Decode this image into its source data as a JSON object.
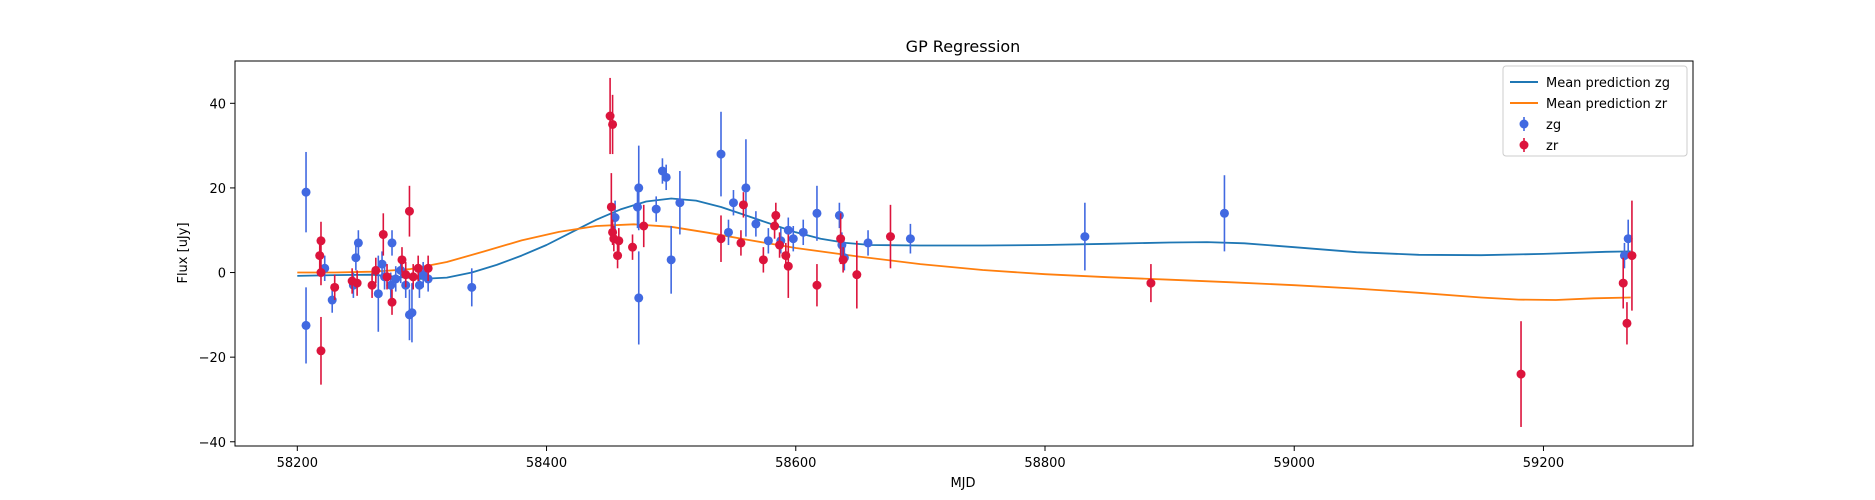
{
  "chart_data": {
    "type": "scatter",
    "title": "GP Regression",
    "xlabel": "MJD",
    "ylabel": "Flux [uJy]",
    "xlim": [
      58150,
      59320
    ],
    "ylim": [
      -41,
      50
    ],
    "xticks": [
      58200,
      58400,
      58600,
      58800,
      59000,
      59200
    ],
    "yticks": [
      -40,
      -20,
      0,
      20,
      40
    ],
    "grid": false,
    "legend_position": "top-right",
    "colors": {
      "zg_line": "#1f77b4",
      "zr_line": "#ff7f0e",
      "zg_points": "#4169e1",
      "zr_points": "#dc143c"
    },
    "legend": [
      {
        "label": "Mean prediction zg",
        "kind": "line",
        "color": "#1f77b4"
      },
      {
        "label": "Mean prediction zr",
        "kind": "line",
        "color": "#ff7f0e"
      },
      {
        "label": "zg",
        "kind": "point",
        "color": "#4169e1"
      },
      {
        "label": "zr",
        "kind": "point",
        "color": "#dc143c"
      }
    ],
    "series": [
      {
        "name": "Mean prediction zg",
        "kind": "line",
        "color": "#1f77b4",
        "points": [
          [
            58200,
            -0.8
          ],
          [
            58230,
            -0.6
          ],
          [
            58260,
            -0.5
          ],
          [
            58280,
            -1.0
          ],
          [
            58300,
            -1.5
          ],
          [
            58320,
            -1.2
          ],
          [
            58340,
            0.0
          ],
          [
            58360,
            1.8
          ],
          [
            58380,
            4.0
          ],
          [
            58400,
            6.5
          ],
          [
            58420,
            9.5
          ],
          [
            58440,
            12.5
          ],
          [
            58460,
            15.0
          ],
          [
            58480,
            16.8
          ],
          [
            58500,
            17.5
          ],
          [
            58520,
            17.0
          ],
          [
            58540,
            15.5
          ],
          [
            58560,
            13.5
          ],
          [
            58580,
            11.5
          ],
          [
            58600,
            9.5
          ],
          [
            58620,
            8.0
          ],
          [
            58640,
            7.0
          ],
          [
            58660,
            6.5
          ],
          [
            58700,
            6.4
          ],
          [
            58750,
            6.4
          ],
          [
            58800,
            6.5
          ],
          [
            58850,
            6.8
          ],
          [
            58900,
            7.1
          ],
          [
            58930,
            7.2
          ],
          [
            58960,
            6.9
          ],
          [
            59000,
            6.0
          ],
          [
            59050,
            4.8
          ],
          [
            59100,
            4.2
          ],
          [
            59150,
            4.1
          ],
          [
            59200,
            4.4
          ],
          [
            59250,
            4.9
          ],
          [
            59270,
            5.0
          ]
        ]
      },
      {
        "name": "Mean prediction zr",
        "kind": "line",
        "color": "#ff7f0e",
        "points": [
          [
            58200,
            0.0
          ],
          [
            58230,
            0.0
          ],
          [
            58260,
            0.2
          ],
          [
            58290,
            0.8
          ],
          [
            58320,
            2.5
          ],
          [
            58350,
            5.0
          ],
          [
            58380,
            7.6
          ],
          [
            58410,
            9.6
          ],
          [
            58440,
            11.0
          ],
          [
            58470,
            11.4
          ],
          [
            58500,
            10.8
          ],
          [
            58530,
            9.4
          ],
          [
            58560,
            7.8
          ],
          [
            58600,
            5.8
          ],
          [
            58650,
            3.8
          ],
          [
            58700,
            2.0
          ],
          [
            58750,
            0.6
          ],
          [
            58800,
            -0.4
          ],
          [
            58850,
            -1.1
          ],
          [
            58900,
            -1.7
          ],
          [
            58950,
            -2.3
          ],
          [
            59000,
            -3.0
          ],
          [
            59050,
            -3.8
          ],
          [
            59100,
            -4.8
          ],
          [
            59150,
            -5.9
          ],
          [
            59180,
            -6.4
          ],
          [
            59210,
            -6.5
          ],
          [
            59240,
            -6.1
          ],
          [
            59270,
            -5.9
          ]
        ]
      },
      {
        "name": "zg",
        "kind": "errorbar",
        "color": "#4169e1",
        "points": [
          [
            58207,
            19,
            9.5
          ],
          [
            58207,
            -12.5,
            9
          ],
          [
            58222,
            1,
            3
          ],
          [
            58228,
            -6.5,
            3
          ],
          [
            58245,
            -3,
            3
          ],
          [
            58247,
            3.5,
            3
          ],
          [
            58249,
            7,
            3
          ],
          [
            58265,
            -5,
            9
          ],
          [
            58268,
            2,
            3
          ],
          [
            58270,
            -1,
            3
          ],
          [
            58275,
            -3,
            3
          ],
          [
            58276,
            7,
            3
          ],
          [
            58279,
            -1.5,
            3
          ],
          [
            58283,
            0.5,
            3
          ],
          [
            58287,
            -3,
            3
          ],
          [
            58290,
            -10,
            6
          ],
          [
            58292,
            -9.5,
            7
          ],
          [
            58298,
            -3,
            3
          ],
          [
            58301,
            -0.5,
            3
          ],
          [
            58305,
            -1.5,
            3
          ],
          [
            58340,
            -3.5,
            4.5
          ],
          [
            58455,
            13,
            4
          ],
          [
            58473,
            15.5,
            5
          ],
          [
            58474,
            20,
            10
          ],
          [
            58474,
            -6,
            11
          ],
          [
            58488,
            15,
            3
          ],
          [
            58493,
            24,
            3
          ],
          [
            58496,
            22.5,
            3
          ],
          [
            58500,
            3,
            8
          ],
          [
            58507,
            16.5,
            7.5
          ],
          [
            58540,
            28,
            10
          ],
          [
            58546,
            9.5,
            3
          ],
          [
            58550,
            16.5,
            3
          ],
          [
            58560,
            20,
            11.5
          ],
          [
            58568,
            11.5,
            3
          ],
          [
            58578,
            7.5,
            3
          ],
          [
            58588,
            7.5,
            3
          ],
          [
            58594,
            10,
            3
          ],
          [
            58598,
            8,
            3
          ],
          [
            58606,
            9.5,
            3
          ],
          [
            58617,
            14,
            6.5
          ],
          [
            58635,
            13.5,
            3
          ],
          [
            58637,
            6.5,
            3
          ],
          [
            58639,
            3.5,
            3
          ],
          [
            58658,
            7,
            3
          ],
          [
            58692,
            8,
            3.5
          ],
          [
            58832,
            8.5,
            8
          ],
          [
            58944,
            14,
            9
          ],
          [
            59265,
            4,
            3
          ],
          [
            59268,
            8,
            4.5
          ]
        ]
      },
      {
        "name": "zr",
        "kind": "errorbar",
        "color": "#dc143c",
        "points": [
          [
            58218,
            4,
            4
          ],
          [
            58219,
            7.5,
            4.5
          ],
          [
            58219,
            0,
            3
          ],
          [
            58219,
            -18.5,
            8
          ],
          [
            58230,
            -3.5,
            3
          ],
          [
            58244,
            -2,
            3
          ],
          [
            58248,
            -2.5,
            3
          ],
          [
            58260,
            -3,
            3
          ],
          [
            58263,
            0.5,
            3
          ],
          [
            58269,
            9,
            5
          ],
          [
            58272,
            -1,
            3
          ],
          [
            58276,
            -7,
            3
          ],
          [
            58284,
            3,
            3
          ],
          [
            58287,
            -0.5,
            3
          ],
          [
            58290,
            14.5,
            6
          ],
          [
            58293,
            -1,
            3
          ],
          [
            58297,
            1,
            3
          ],
          [
            58305,
            1,
            3
          ],
          [
            58451,
            37,
            9
          ],
          [
            58453,
            35,
            7
          ],
          [
            58452,
            15.5,
            8
          ],
          [
            58453,
            9.5,
            3
          ],
          [
            58454,
            8,
            3
          ],
          [
            58457,
            4,
            3
          ],
          [
            58458,
            7.5,
            3
          ],
          [
            58469,
            6,
            3
          ],
          [
            58478,
            11,
            5
          ],
          [
            58540,
            8,
            5.5
          ],
          [
            58556,
            7,
            3
          ],
          [
            58558,
            16,
            3
          ],
          [
            58574,
            3,
            3
          ],
          [
            58583,
            11,
            3
          ],
          [
            58584,
            13.5,
            3
          ],
          [
            58587,
            6.5,
            3
          ],
          [
            58592,
            4,
            3
          ],
          [
            58594,
            1.5,
            7.5
          ],
          [
            58617,
            -3,
            5
          ],
          [
            58636,
            8,
            6
          ],
          [
            58638,
            3,
            3
          ],
          [
            58649,
            -0.5,
            8
          ],
          [
            58676,
            8.5,
            7.5
          ],
          [
            58885,
            -2.5,
            4.5
          ],
          [
            59182,
            -24,
            12.5
          ],
          [
            59264,
            -2.5,
            6
          ],
          [
            59267,
            -12,
            5
          ],
          [
            59271,
            4,
            13
          ]
        ]
      }
    ]
  }
}
